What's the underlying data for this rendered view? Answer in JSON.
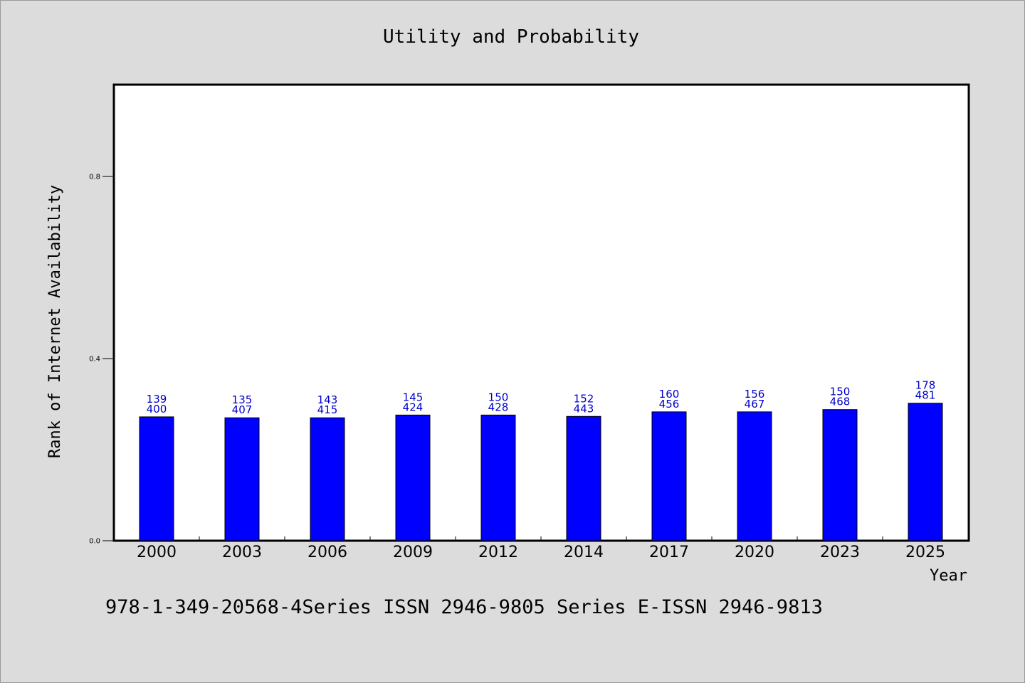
{
  "chart_data": {
    "type": "bar",
    "title": "Utility and Probability",
    "xlabel": "Year",
    "ylabel": "Rank of Internet Availability",
    "categories": [
      "2000",
      "2003",
      "2006",
      "2009",
      "2012",
      "2014",
      "2017",
      "2020",
      "2023",
      "2025"
    ],
    "series": [
      {
        "values": [
          0.272,
          0.27,
          0.27,
          0.276,
          0.276,
          0.273,
          0.283,
          0.283,
          0.288,
          0.302
        ]
      }
    ],
    "data_labels": {
      "top": [
        "139",
        "135",
        "143",
        "145",
        "150",
        "152",
        "160",
        "156",
        "150",
        "178"
      ],
      "bottom": [
        "400",
        "407",
        "415",
        "424",
        "428",
        "443",
        "456",
        "467",
        "468",
        "481"
      ]
    },
    "yticks": [
      "0.0",
      "0.4",
      "0.8"
    ],
    "ylim": [
      0,
      1.0
    ],
    "grid": false,
    "bar_color": "#0000ff",
    "label_color": "#0000cc"
  },
  "footer_text": "978-1-349-20568-4Series ISSN 2946-9805 Series E-ISSN 2946-9813"
}
